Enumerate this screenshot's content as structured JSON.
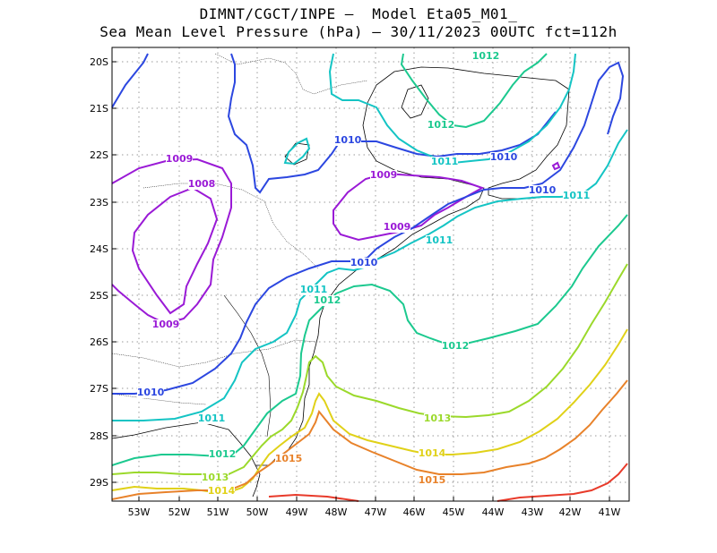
{
  "title_line1": "DIMNT/CGCT/INPE –  Model Eta05_M01_",
  "title_line2": "Sea Mean Level Pressure (hPa) – 30/11/2023 00UTC fct=112h",
  "lat_ticks": [
    "20S",
    "21S",
    "22S",
    "23S",
    "24S",
    "25S",
    "26S",
    "27S",
    "28S",
    "29S"
  ],
  "lon_ticks": [
    "53W",
    "52W",
    "51W",
    "50W",
    "49W",
    "48W",
    "47W",
    "46W",
    "45W",
    "44W",
    "43W",
    "42W",
    "41W"
  ],
  "levels": {
    "1008": {
      "label": "1008",
      "color": "#9a1ad6"
    },
    "1009": {
      "label": "1009",
      "color": "#9a1ad6"
    },
    "1010": {
      "label": "1010",
      "color": "#2c47e0"
    },
    "1011": {
      "label": "1011",
      "color": "#14c4c4"
    },
    "1012": {
      "label": "1012",
      "color": "#1cc98f"
    },
    "1013": {
      "label": "1013",
      "color": "#9bd92b"
    },
    "1014": {
      "label": "1014",
      "color": "#e0d118"
    },
    "1015": {
      "label": "1015",
      "color": "#e8822a"
    },
    "1016": {
      "label": "",
      "color": "#e83a2a"
    }
  }
}
